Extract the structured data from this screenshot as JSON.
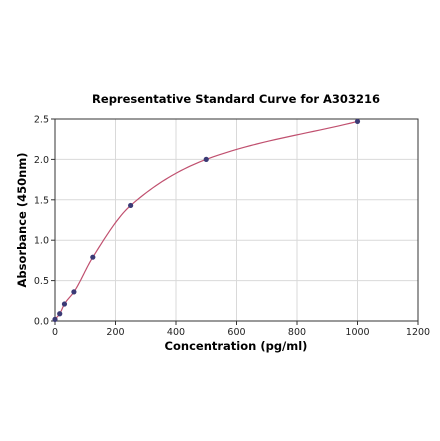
{
  "chart_data": {
    "type": "scatter",
    "title": "Representative Standard Curve for A303216",
    "xlabel": "Concentration (pg/ml)",
    "ylabel": "Absorbance (450nm)",
    "xlim": [
      0,
      1200
    ],
    "ylim": [
      0,
      2.5
    ],
    "x_ticks": [
      "0",
      "200",
      "400",
      "600",
      "800",
      "1000",
      "1200"
    ],
    "y_ticks": [
      "0.0",
      "0.5",
      "1.0",
      "1.5",
      "2.0",
      "2.5"
    ],
    "grid": true,
    "series": [
      {
        "x": [
          0,
          15.6,
          31.25,
          62.5,
          125,
          250,
          500,
          1000
        ],
        "y": [
          0.02,
          0.09,
          0.21,
          0.36,
          0.79,
          1.43,
          2.0,
          2.47
        ],
        "marker_color": "#3b3a75"
      }
    ],
    "fit_curve": {
      "color": "#c0506f"
    }
  }
}
